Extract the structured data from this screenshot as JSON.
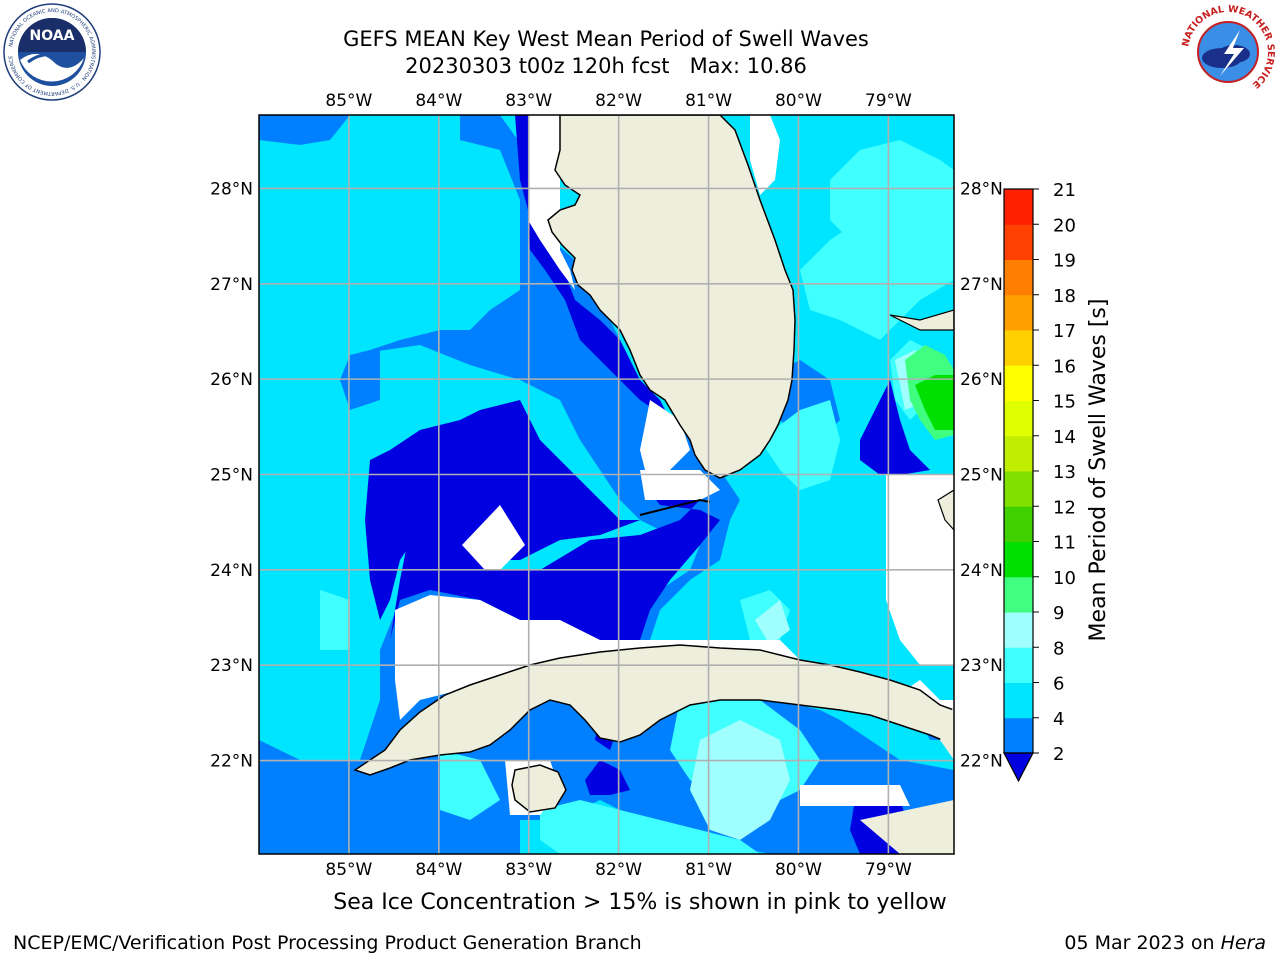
{
  "title": {
    "line1": "GEFS MEAN Key West Mean Period of Swell Waves",
    "line2": "20230303 t00z 120h fcst   Max: 10.86"
  },
  "map": {
    "lon_labels": [
      "85°W",
      "84°W",
      "83°W",
      "82°W",
      "81°W",
      "80°W",
      "79°W"
    ],
    "lat_labels": [
      "28°N",
      "27°N",
      "26°N",
      "25°N",
      "24°N",
      "23°N",
      "22°N"
    ],
    "lon_values": [
      -85,
      -84,
      -83,
      -82,
      -81,
      -80,
      -79
    ],
    "lat_values": [
      28,
      27,
      26,
      25,
      24,
      23,
      22
    ],
    "extent": {
      "lon_min": -86,
      "lon_max": -78.27,
      "lat_min": 21.02,
      "lat_max": 28.77
    },
    "land_color": "#eeeedd",
    "grid_color": "#b0b0b0"
  },
  "colorbar": {
    "label": "Mean Period of Swell Waves [s]",
    "ticks": [
      "2",
      "4",
      "6",
      "8",
      "9",
      "10",
      "11",
      "12",
      "13",
      "14",
      "15",
      "16",
      "17",
      "18",
      "19",
      "20",
      "21"
    ],
    "levels": [
      2,
      4,
      6,
      8,
      9,
      10,
      11,
      12,
      13,
      14,
      15,
      16,
      17,
      18,
      19,
      20,
      21
    ],
    "colors": [
      "#0080ff",
      "#00e5ff",
      "#40ffff",
      "#a0ffff",
      "#40ff80",
      "#00e000",
      "#40d000",
      "#80e000",
      "#c0ee00",
      "#e0ff00",
      "#ffff00",
      "#ffd000",
      "#ffa000",
      "#ff8000",
      "#ff4000",
      "#ff2000",
      "#ff0000"
    ],
    "under_color": "#0000e0"
  },
  "note": "Sea Ice Concentration > 15% is shown in pink to yellow",
  "footer": {
    "left": "NCEP/EMC/Verification Post Processing Product Generation Branch",
    "date": "05 Mar 2023 on ",
    "host": "Hera"
  },
  "logos": {
    "noaa_text": "NOAA",
    "noaa_ring": "NATIONAL OCEANIC AND ATMOSPHERIC ADMINISTRATION · U.S. DEPARTMENT OF COMMERCE",
    "nws_ring": "NATIONAL WEATHER SERVICE"
  }
}
